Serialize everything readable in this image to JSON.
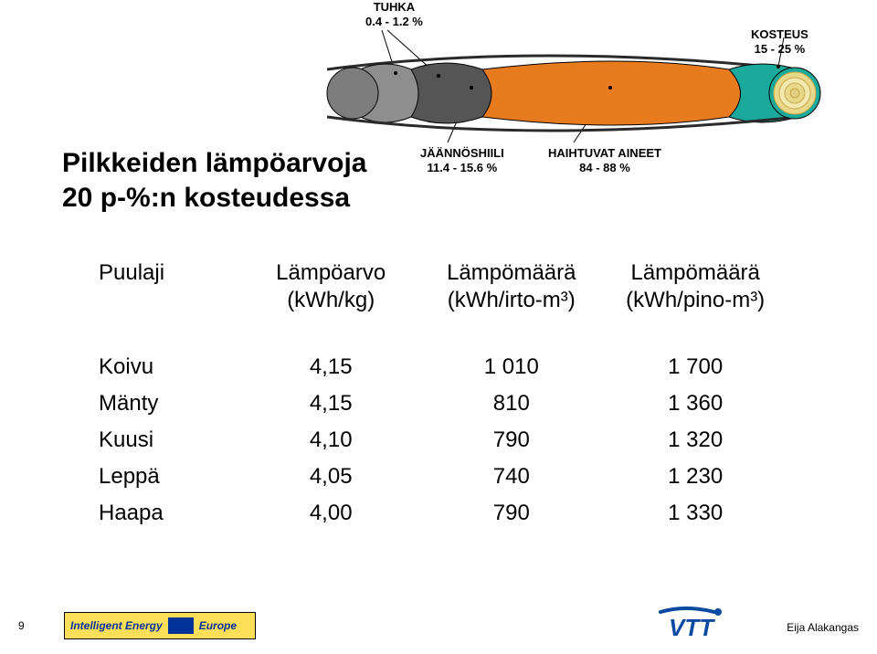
{
  "log_diagram": {
    "colors": {
      "outer_skin": "#2a2a2a",
      "ash_end": "#7d7d7d",
      "ash_section": "#8e8e8e",
      "carbon_section": "#555555",
      "volatile_section": "#e77b1d",
      "moisture_bark": "#1aa99a",
      "core_ring1": "#e8d98a",
      "core_ring2": "#f2e8b0",
      "core_center": "#e0cf80",
      "connector": "#000000",
      "background": "#ffffff"
    },
    "labels": {
      "tuhka_name": "TUHKA",
      "tuhka_value": "0.4 - 1.2 %",
      "kosteus_name": "KOSTEUS",
      "kosteus_value": "15 - 25 %",
      "jaan_name": "JÄÄNNÖSHIILI",
      "jaan_value": "11.4 - 15.6 %",
      "haih_name": "HAIHTUVAT AINEET",
      "haih_value": "84 - 88 %"
    },
    "label_style": {
      "fontsize": 13,
      "fontweight": "bold",
      "color": "#000000"
    }
  },
  "heading": {
    "line1": "Pilkkeiden lämpöarvoja",
    "line2": "20 p-%:n kosteudessa",
    "fontsize": 30,
    "fontweight": "bold",
    "color": "#000000"
  },
  "table": {
    "fontsize": 24,
    "color": "#000000",
    "columns": [
      {
        "line1": "Puulaji",
        "line2": "",
        "align": "left",
        "width": "22%"
      },
      {
        "line1": "Lämpöarvo",
        "line2": "(kWh/kg)",
        "align": "center",
        "width": "25%"
      },
      {
        "line1": "Lämpömäärä",
        "line2": "(kWh/irto-m³)",
        "align": "center",
        "width": "27%"
      },
      {
        "line1": "Lämpömäärä",
        "line2": "(kWh/pino-m³)",
        "align": "center",
        "width": "26%"
      }
    ],
    "rows": [
      {
        "name": "Koivu",
        "v1": "4,15",
        "v2": "1 010",
        "v3": "1 700"
      },
      {
        "name": "Mänty",
        "v1": "4,15",
        "v2": "810",
        "v3": "1 360"
      },
      {
        "name": "Kuusi",
        "v1": "4,10",
        "v2": "790",
        "v3": "1 320"
      },
      {
        "name": "Leppä",
        "v1": "4,05",
        "v2": "740",
        "v3": "1 230"
      },
      {
        "name": "Haapa",
        "v1": "4,00",
        "v2": "790",
        "v3": "1 330"
      }
    ]
  },
  "footer": {
    "page_number": "9",
    "ie_text": "Intelligent Energy",
    "ie_sub": "Europe",
    "ie_bg": "#ffde59",
    "ie_textcolor": "#003399",
    "vtt_text": "VTT",
    "vtt_color": "#0a4aa0",
    "author": "Eija Alakangas"
  }
}
